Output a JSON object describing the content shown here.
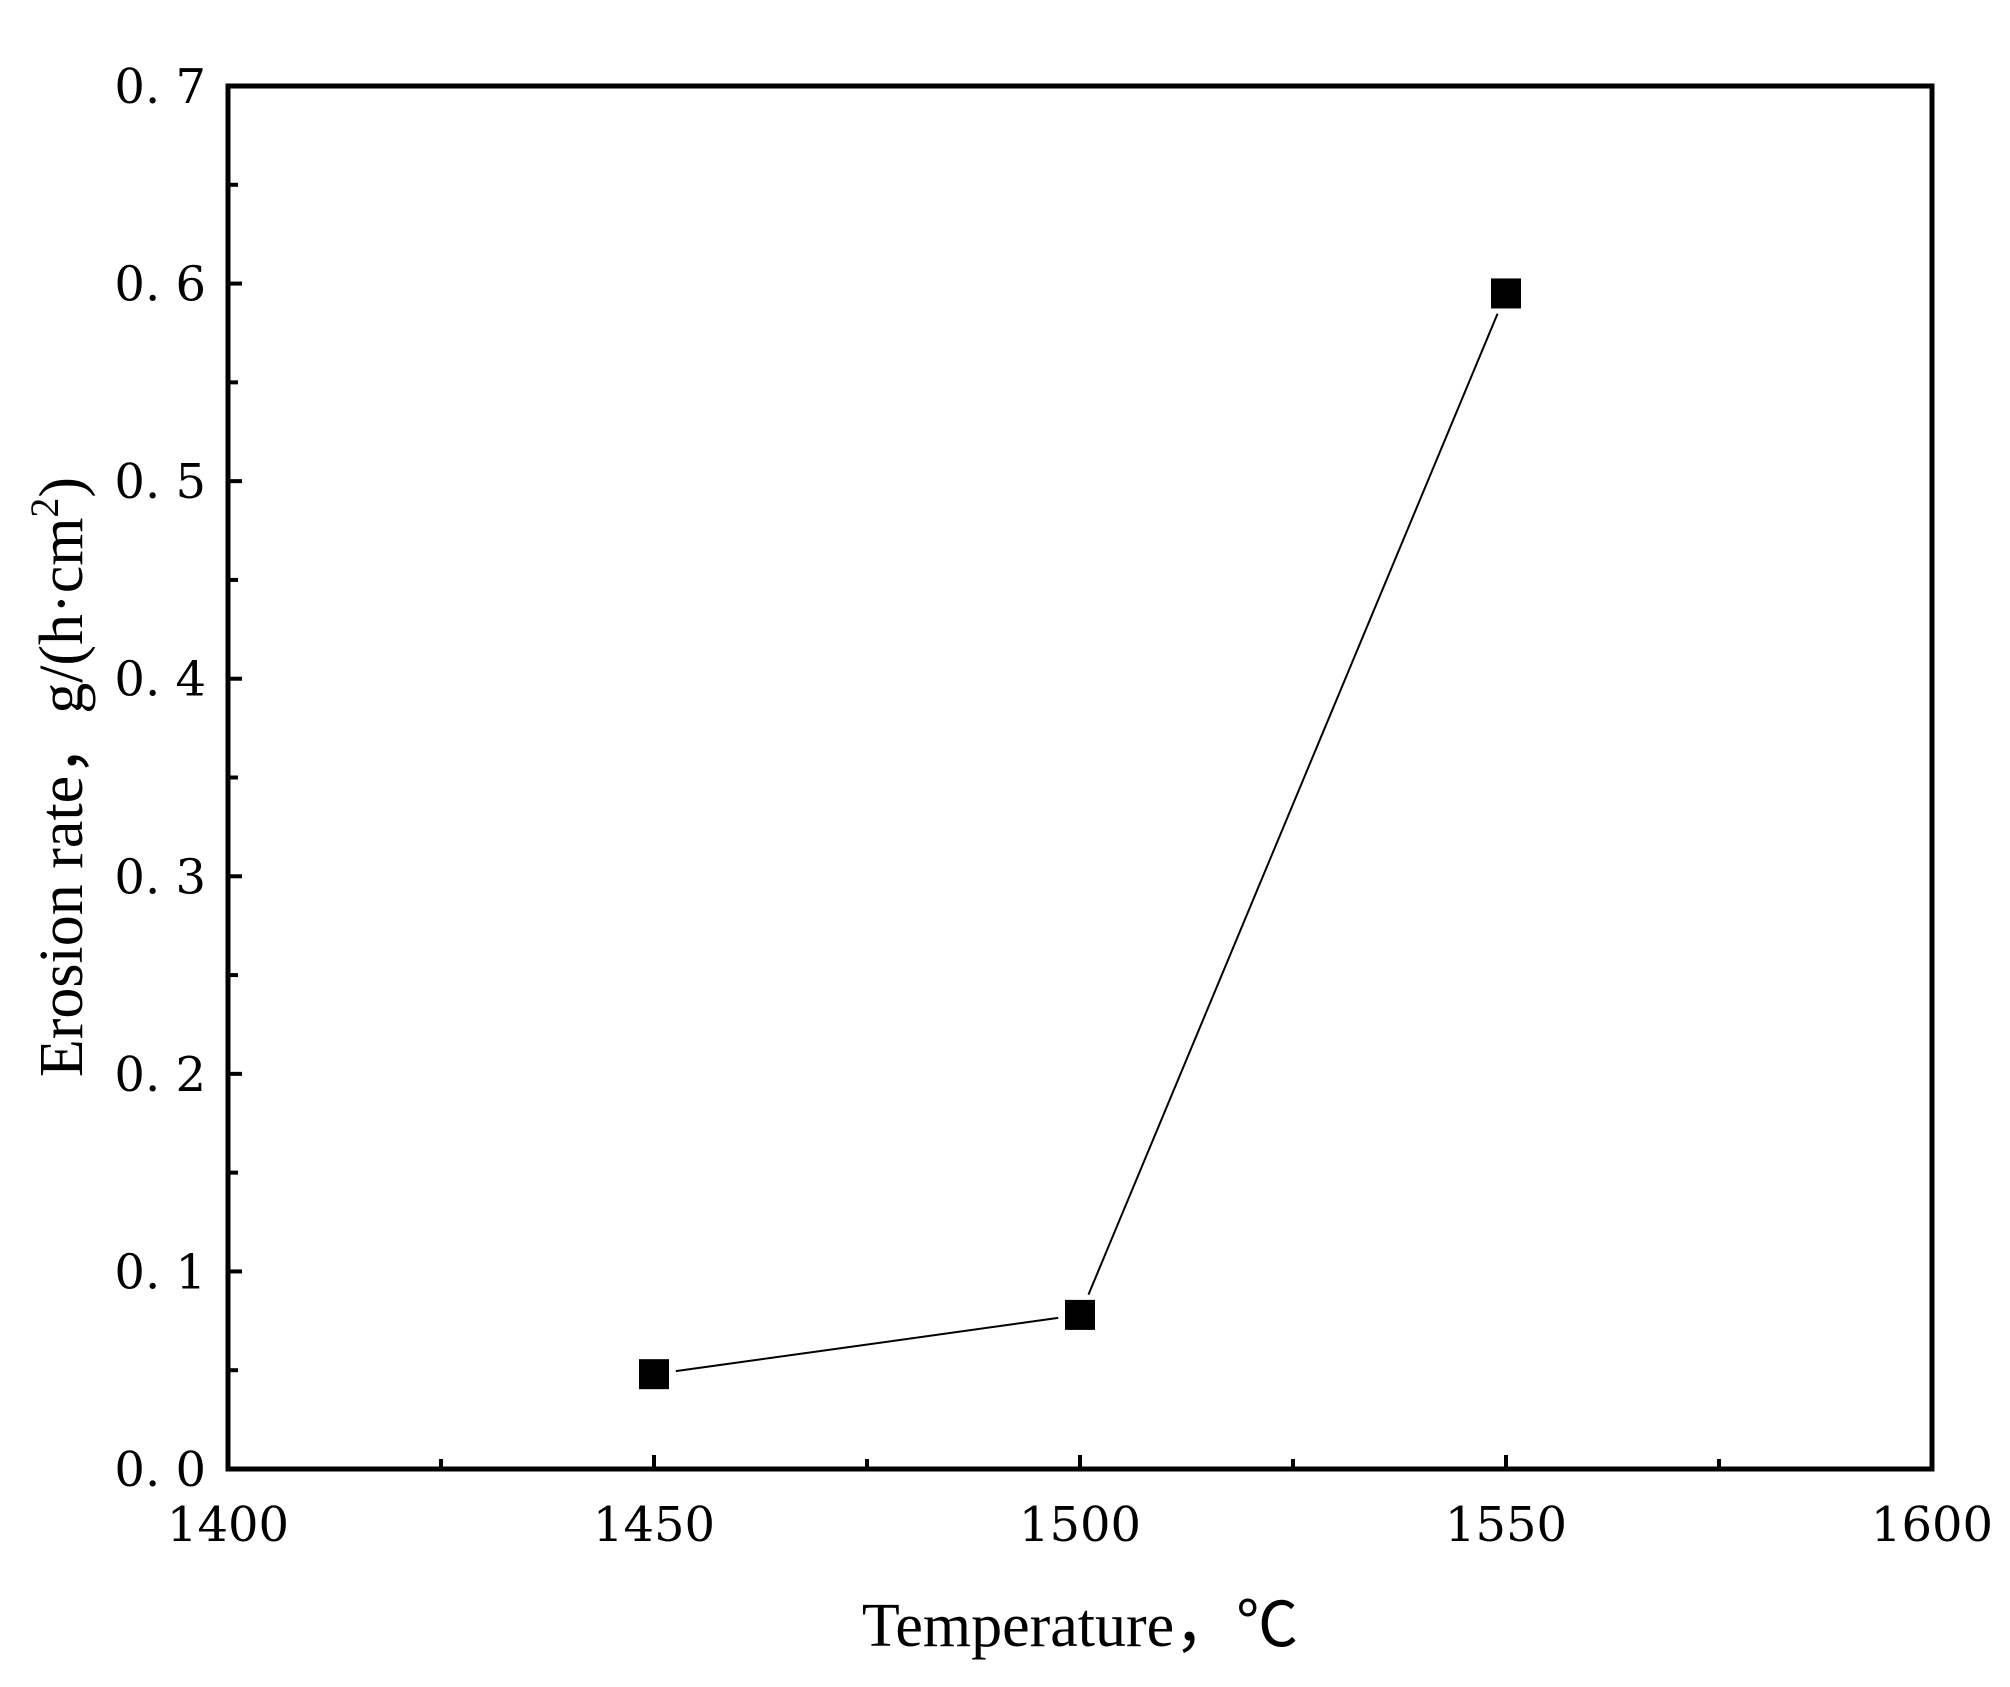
{
  "chart_data": {
    "type": "line",
    "title": "",
    "xlabel": "Temperature，℃",
    "ylabel_main": "Erosion rate，g/(h·cm",
    "ylabel_sup": "2",
    "ylabel_close": ")",
    "xlim": [
      1400,
      1600
    ],
    "ylim": [
      0.0,
      0.7
    ],
    "x_ticks": [
      1400,
      1450,
      1500,
      1550,
      1600
    ],
    "x_tick_labels": [
      "1400",
      "1450",
      "1500",
      "1550",
      "1600"
    ],
    "x_minor_ticks": [
      1425,
      1475,
      1525,
      1575
    ],
    "y_ticks": [
      0.0,
      0.1,
      0.2,
      0.3,
      0.4,
      0.5,
      0.6,
      0.7
    ],
    "y_tick_labels": [
      "0. 0",
      "0. 1",
      "0. 2",
      "0. 3",
      "0. 4",
      "0. 5",
      "0. 6",
      "0. 7"
    ],
    "y_minor_ticks": [
      0.05,
      0.15,
      0.25,
      0.35,
      0.45,
      0.55,
      0.65
    ],
    "grid": false,
    "legend": "none",
    "series": [
      {
        "x": [
          1450,
          1500,
          1550
        ],
        "y": [
          0.048,
          0.078,
          0.595
        ],
        "color": "#000000",
        "marker": "square"
      }
    ]
  }
}
